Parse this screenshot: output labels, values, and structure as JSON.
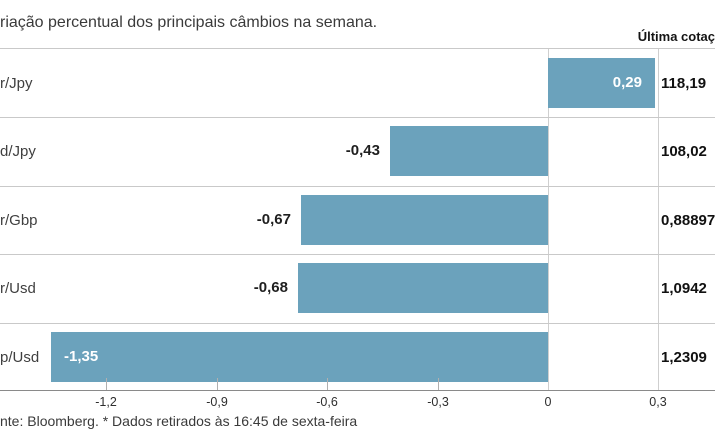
{
  "header": {
    "title": "riação percentual dos principais câmbios na semana.",
    "last_quote_column_header": "Última cotaç"
  },
  "footer": {
    "footnote": "nte: Bloomberg.  * Dados retirados às 16:45 de sexta-feira"
  },
  "chart_data": {
    "type": "bar",
    "orientation": "horizontal",
    "title": "riação percentual dos principais câmbios na semana.",
    "categories": [
      "r/Jpy",
      "d/Jpy",
      "r/Gbp",
      "r/Usd",
      "p/Usd"
    ],
    "values": [
      0.29,
      -0.43,
      -0.67,
      -0.68,
      -1.35
    ],
    "value_labels": [
      "0,29",
      "-0,43",
      "-0,67",
      "-0,68",
      "-1,35"
    ],
    "last_quotes": [
      "118,19",
      "108,02",
      "0,88897",
      "1,0942",
      "1,2309"
    ],
    "x_ticks": [
      {
        "label": "-1,2",
        "value": -1.2,
        "gridline": false
      },
      {
        "label": "-0,9",
        "value": -0.9,
        "gridline": false
      },
      {
        "label": "-0,6",
        "value": -0.6,
        "gridline": false
      },
      {
        "label": "-0,3",
        "value": -0.3,
        "gridline": false
      },
      {
        "label": "0",
        "value": 0,
        "gridline": true
      },
      {
        "label": "0,3",
        "value": 0.3,
        "gridline": true
      }
    ],
    "xlim": [
      -1.49,
      0.45
    ],
    "legend": "none",
    "grid": "row separators + vertical lines at 0 and 0,3",
    "colors": {
      "bar": "#6ba2bc",
      "separator": "#c9c9c9",
      "axis": "#8a8a8a",
      "text": "#3a3a3a",
      "bold_text": "#111111",
      "bar_label_inside": "#ffffff",
      "bar_label_outside": "#1f1f1f"
    }
  }
}
